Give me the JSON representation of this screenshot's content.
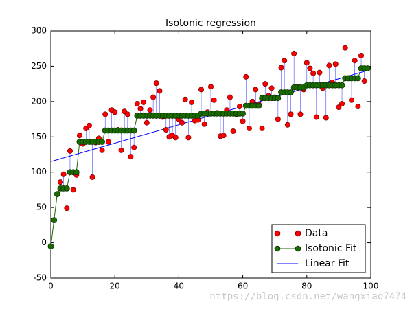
{
  "chart_data": {
    "type": "line",
    "title": "Isotonic regression",
    "x": [
      0,
      1,
      2,
      3,
      4,
      5,
      6,
      7,
      8,
      9,
      10,
      11,
      12,
      13,
      14,
      15,
      16,
      17,
      18,
      19,
      20,
      21,
      22,
      23,
      24,
      25,
      26,
      27,
      28,
      29,
      30,
      31,
      32,
      33,
      34,
      35,
      36,
      37,
      38,
      39,
      40,
      41,
      42,
      43,
      44,
      45,
      46,
      47,
      48,
      49,
      50,
      51,
      52,
      53,
      54,
      55,
      56,
      57,
      58,
      59,
      60,
      61,
      62,
      63,
      64,
      65,
      66,
      67,
      68,
      69,
      70,
      71,
      72,
      73,
      74,
      75,
      76,
      77,
      78,
      79,
      80,
      81,
      82,
      83,
      84,
      85,
      86,
      87,
      88,
      89,
      90,
      91,
      92,
      93,
      94,
      95,
      96,
      97,
      98,
      99
    ],
    "series": [
      {
        "name": "Data",
        "color": "#ff0000",
        "style": "markers",
        "values": [
          -5,
          32,
          69,
          86,
          97,
          49,
          130,
          75,
          96,
          152,
          140,
          162,
          166,
          93,
          142,
          148,
          131,
          182,
          143,
          188,
          185,
          160,
          131,
          186,
          182,
          122,
          135,
          197,
          190,
          199,
          170,
          188,
          206,
          226,
          215,
          178,
          160,
          150,
          152,
          149,
          175,
          170,
          203,
          149,
          199,
          173,
          174,
          217,
          168,
          185,
          221,
          202,
          184,
          151,
          152,
          188,
          206,
          158,
          182,
          193,
          172,
          235,
          162,
          200,
          217,
          196,
          162,
          225,
          208,
          219,
          206,
          175,
          248,
          258,
          167,
          182,
          268,
          221,
          182,
          217,
          255,
          247,
          240,
          178,
          241,
          219,
          177,
          251,
          227,
          253,
          192,
          197,
          276,
          233,
          202,
          258,
          193,
          265,
          229,
          247
        ]
      },
      {
        "name": "Isotonic Fit",
        "color": "#1a6b00",
        "style": "line-markers",
        "values": [
          -5,
          32,
          69,
          77,
          77,
          77,
          100,
          100,
          100,
          143,
          143,
          143,
          143,
          143,
          143,
          143,
          143,
          159,
          159,
          159,
          159,
          159,
          159,
          159,
          159,
          159,
          159,
          180,
          180,
          180,
          180,
          180,
          180,
          180,
          180,
          180,
          180,
          180,
          180,
          180,
          180,
          180,
          180,
          180,
          180,
          180,
          180,
          183,
          183,
          183,
          183,
          183,
          183,
          183,
          183,
          183,
          183,
          183,
          183,
          183,
          183,
          194,
          194,
          194,
          194,
          194,
          205,
          205,
          205,
          205,
          205,
          205,
          213,
          213,
          213,
          213,
          220,
          220,
          220,
          220,
          223,
          223,
          223,
          223,
          223,
          223,
          223,
          223,
          223,
          223,
          223,
          223,
          233,
          233,
          233,
          233,
          233,
          247,
          247,
          247
        ]
      },
      {
        "name": "Linear Fit",
        "color": "#0000ff",
        "style": "line",
        "x": [
          0,
          99
        ],
        "values": [
          115,
          244
        ]
      }
    ],
    "xlim": [
      0,
      100
    ],
    "ylim": [
      -50,
      300
    ],
    "xticks": [
      0,
      20,
      40,
      60,
      80,
      100
    ],
    "yticks": [
      -50,
      0,
      50,
      100,
      150,
      200,
      250,
      300
    ],
    "legend": "lower right",
    "watermark": "https://blog.csdn.net/wangxiao7474"
  }
}
